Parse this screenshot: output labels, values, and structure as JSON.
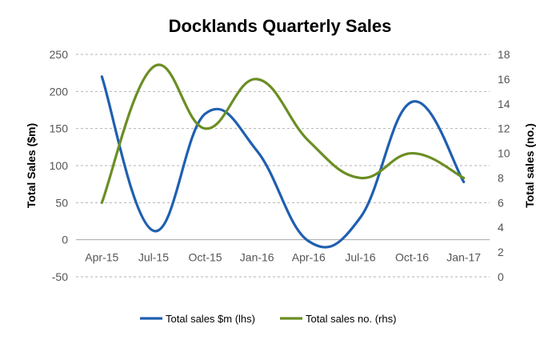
{
  "chart_data": {
    "type": "line",
    "title": "Docklands Quarterly Sales",
    "ylabel_left": "Total Sales ($m)",
    "ylabel_right": "Total sales (no.)",
    "categories": [
      "Apr-15",
      "Jul-15",
      "Oct-15",
      "Jan-16",
      "Apr-16",
      "Jul-16",
      "Oct-16",
      "Jan-17"
    ],
    "ylim_left": [
      -50,
      250
    ],
    "yticks_left": [
      "-50",
      "0",
      "50",
      "100",
      "150",
      "200",
      "250"
    ],
    "ylim_right": [
      0,
      18
    ],
    "yticks_right": [
      "0",
      "2",
      "4",
      "6",
      "8",
      "10",
      "12",
      "14",
      "16",
      "18"
    ],
    "grid": "horizontal dashed",
    "legend_position": "bottom",
    "series": [
      {
        "name": "Total sales $m (lhs)",
        "axis": "left",
        "color": "#1f5fb0",
        "values": [
          220,
          12,
          170,
          120,
          -2,
          30,
          186,
          78
        ]
      },
      {
        "name": "Total sales no. (rhs)",
        "axis": "right",
        "color": "#6b8e23",
        "values": [
          6,
          17,
          12,
          16,
          11,
          8,
          10,
          8
        ]
      }
    ]
  }
}
